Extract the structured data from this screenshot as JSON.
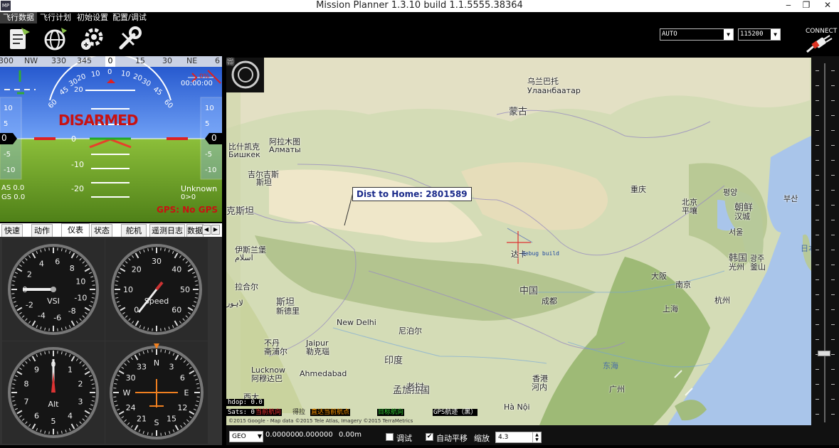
{
  "window": {
    "title": "Mission Planner 1.3.10 build 1.1.5555.38364",
    "app_icon": "MP",
    "minimize": "‒",
    "restore": "❐",
    "close": "✕"
  },
  "menu": [
    {
      "label": "飞行数据",
      "icon": "flight-data-icon"
    },
    {
      "label": "飞行计划",
      "icon": "flight-plan-icon"
    },
    {
      "label": "初始设置",
      "icon": "initial-setup-icon"
    },
    {
      "label": "配置/调试",
      "icon": "config-tuning-icon"
    }
  ],
  "connection": {
    "mode": "AUTO",
    "baud": "115200",
    "connect_label": "CONNECT"
  },
  "hud": {
    "heading_ticks": [
      "300",
      "NW",
      "330",
      "345",
      "0",
      "15",
      "30",
      "NE",
      "6"
    ],
    "heading_value": "0",
    "roll_labels": [
      "60",
      "45",
      "30",
      "20",
      "10",
      "0",
      "10",
      "20",
      "30",
      "45",
      "60"
    ],
    "pitch_labels": [
      "20",
      "0",
      "-10",
      "-20"
    ],
    "pitch_label_top": "20",
    "status": "DISARMED",
    "left_scale": [
      "10",
      "5",
      "0",
      "-5",
      "-10"
    ],
    "right_scale": [
      "10",
      "5",
      "0",
      "-5",
      "-10"
    ],
    "left_value": "0",
    "right_value": "0",
    "airspeed": "AS 0.0",
    "groundspeed": "GS 0.0",
    "time": "00:00:00",
    "battery_pct": "0%",
    "mode": "Unknown",
    "mode_sub": "0>0",
    "gps_status": "GPS: No GPS"
  },
  "tabs": [
    "快速",
    "动作",
    "仪表",
    "状态",
    "舵机",
    "遥测日志",
    "数据"
  ],
  "active_tab": "仪表",
  "gauges": {
    "vsi": {
      "label": "VSI",
      "ticks": [
        "0",
        "2",
        "4",
        "6",
        "8",
        "10",
        "-10",
        "-8",
        "-6",
        "-4",
        "-2"
      ]
    },
    "speed": {
      "label": "Speed",
      "ticks": [
        "0",
        "10",
        "20",
        "30",
        "40",
        "50",
        "60"
      ]
    },
    "alt": {
      "label": "Alt",
      "ticks": [
        "0",
        "1",
        "2",
        "3",
        "4",
        "5",
        "6",
        "7",
        "8",
        "9"
      ]
    },
    "heading": {
      "ticks": [
        "N",
        "3",
        "6",
        "E",
        "12",
        "15",
        "S",
        "21",
        "24",
        "W",
        "30",
        "33"
      ]
    }
  },
  "map": {
    "dist_to_home": "Dist to Home: 2801589",
    "marker_label": "debug build",
    "copyright": "©2015 Google - Map data ©2015 Tele Atlas, Imagery ©2015 TerraMetrics",
    "hdop": "hdop: 0.0",
    "sats": "Sats: 0",
    "waypoint_labels": {
      "current": "当前航向",
      "target": "直达当前航点",
      "target_heading": "目标航向",
      "gps": "GPS航迹（黑）"
    },
    "overlap_text": "得拉",
    "labels": [
      {
        "text": "乌兰巴托",
        "cls": "ml"
      },
      {
        "text": "Улаанбаатар",
        "cls": "ml"
      },
      {
        "text": "蒙古",
        "cls": "ml big"
      },
      {
        "text": "比什凯克",
        "cls": "ml"
      },
      {
        "text": "Бишкек",
        "cls": "ml"
      },
      {
        "text": "阿拉木图",
        "cls": "ml"
      },
      {
        "text": "Алматы",
        "cls": "ml"
      },
      {
        "text": "吉尔吉斯",
        "cls": "ml"
      },
      {
        "text": "斯坦",
        "cls": "ml"
      },
      {
        "text": "克斯坦",
        "cls": "ml big"
      },
      {
        "text": "伊斯兰堡",
        "cls": "ml"
      },
      {
        "text": "اسلام",
        "cls": "ml"
      },
      {
        "text": "拉合尔",
        "cls": "ml"
      },
      {
        "text": "لاہور",
        "cls": "ml"
      },
      {
        "text": "斯坦",
        "cls": "ml big"
      },
      {
        "text": "新德里",
        "cls": "ml"
      },
      {
        "text": "New Delhi",
        "cls": "ml"
      },
      {
        "text": "尼泊尔",
        "cls": "ml"
      },
      {
        "text": "不丹",
        "cls": "ml"
      },
      {
        "text": "斋浦尔",
        "cls": "ml"
      },
      {
        "text": "Jaipur",
        "cls": "ml"
      },
      {
        "text": "勒克瑙",
        "cls": "ml"
      },
      {
        "text": "Lucknow",
        "cls": "ml"
      },
      {
        "text": "阿穆达巴",
        "cls": "ml"
      },
      {
        "text": "Ahmedabad",
        "cls": "ml"
      },
      {
        "text": "印度",
        "cls": "ml big"
      },
      {
        "text": "孟加拉国",
        "cls": "ml big"
      },
      {
        "text": "达卡",
        "cls": "ml"
      },
      {
        "text": "中国",
        "cls": "ml big"
      },
      {
        "text": "成都",
        "cls": "ml"
      },
      {
        "text": "重庆",
        "cls": "ml"
      },
      {
        "text": "北京",
        "cls": "ml"
      },
      {
        "text": "平壤",
        "cls": "ml"
      },
      {
        "text": "평양",
        "cls": "ml"
      },
      {
        "text": "朝鲜",
        "cls": "ml big"
      },
      {
        "text": "汉城",
        "cls": "ml"
      },
      {
        "text": "서울",
        "cls": "ml"
      },
      {
        "text": "韩国",
        "cls": "ml big"
      },
      {
        "text": "光州",
        "cls": "ml"
      },
      {
        "text": "광주",
        "cls": "ml"
      },
      {
        "text": "釜山",
        "cls": "ml"
      },
      {
        "text": "부산",
        "cls": "ml"
      },
      {
        "text": "日本海",
        "cls": "ml sea"
      },
      {
        "text": "大阪",
        "cls": "ml"
      },
      {
        "text": "南京",
        "cls": "ml"
      },
      {
        "text": "上海",
        "cls": "ml"
      },
      {
        "text": "杭州",
        "cls": "ml"
      },
      {
        "text": "东海",
        "cls": "ml sea"
      },
      {
        "text": "广州",
        "cls": "ml"
      },
      {
        "text": "香港",
        "cls": "ml"
      },
      {
        "text": "河内",
        "cls": "ml"
      },
      {
        "text": "Hà Nội",
        "cls": "ml"
      },
      {
        "text": "老挝",
        "cls": "ml big"
      },
      {
        "text": "西大",
        "cls": "ml"
      },
      {
        "text": "斋",
        "cls": "ml"
      }
    ]
  },
  "statusbar": {
    "map_type": "GEO",
    "lat": "0.000000",
    "lng": "0.000000",
    "alt": "0.00m",
    "debug_label": "调试",
    "autopan_label": "自动平移",
    "zoom_label": "缩放",
    "zoom_value": "4.3"
  },
  "colors": {
    "hud_sky": "#2f6fe0",
    "hud_ground": "#72a428",
    "disarmed": "#cc1111",
    "map_land": "#d7dfbd",
    "map_sea": "#a5c3e8"
  }
}
